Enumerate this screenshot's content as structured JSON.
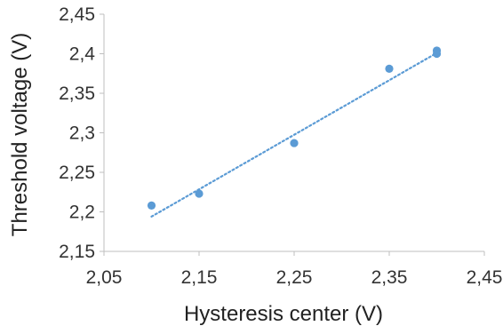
{
  "chart_data": {
    "type": "scatter",
    "title": "",
    "xlabel": "Hysteresis center (V)",
    "ylabel": "Threshold voltage (V)",
    "xlim": [
      2.05,
      2.45
    ],
    "ylim": [
      2.15,
      2.45
    ],
    "x_ticks": [
      "2,05",
      "2,15",
      "2,25",
      "2,35",
      "2,45"
    ],
    "x_tick_values": [
      2.05,
      2.15,
      2.25,
      2.35,
      2.45
    ],
    "y_ticks": [
      "2,15",
      "2,2",
      "2,25",
      "2,3",
      "2,35",
      "2,4",
      "2,45"
    ],
    "y_tick_values": [
      2.15,
      2.2,
      2.25,
      2.3,
      2.35,
      2.4,
      2.45
    ],
    "grid": false,
    "legend": "none",
    "colors": {
      "marker": "#5b9bd5",
      "trendline": "#5b9bd5",
      "axis": "#bfbfbf"
    },
    "series": [
      {
        "points": [
          {
            "x": 2.1,
            "y": 2.208
          },
          {
            "x": 2.15,
            "y": 2.223
          },
          {
            "x": 2.25,
            "y": 2.287
          },
          {
            "x": 2.35,
            "y": 2.381
          },
          {
            "x": 2.4,
            "y": 2.404
          },
          {
            "x": 2.4,
            "y": 2.4
          }
        ]
      }
    ],
    "trendline": {
      "type": "linear",
      "style": "dotted",
      "x_range": [
        2.1,
        2.4
      ],
      "y_range": [
        2.194,
        2.401
      ]
    }
  }
}
